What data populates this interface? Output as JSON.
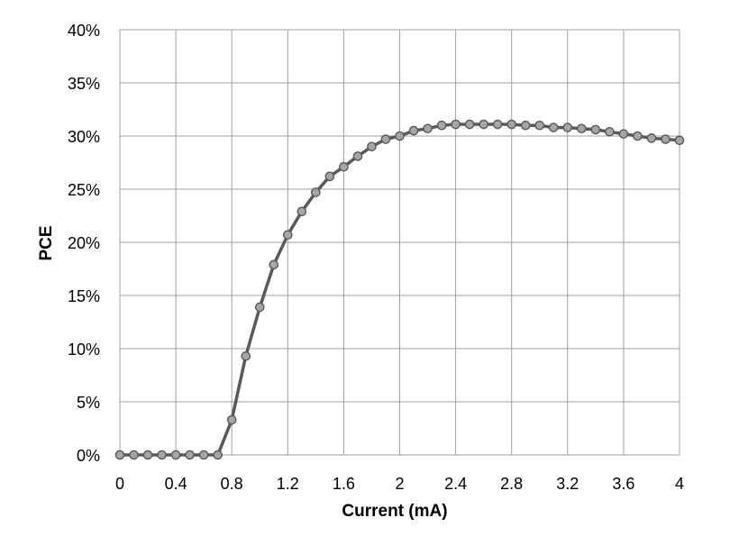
{
  "chart_data": {
    "type": "line",
    "title": "",
    "xlabel": "Current (mA)",
    "ylabel": "PCE",
    "xlim": [
      0,
      4
    ],
    "ylim": [
      0,
      40
    ],
    "x_ticks": [
      "0",
      "0.4",
      "0.8",
      "1.2",
      "1.6",
      "2",
      "2.4",
      "2.8",
      "3.2",
      "3.6",
      "4"
    ],
    "y_ticks": [
      "0%",
      "5%",
      "10%",
      "15%",
      "20%",
      "25%",
      "30%",
      "35%",
      "40%"
    ],
    "grid": true,
    "legend": "none",
    "colors": {
      "line": "#595959",
      "marker_fill": "#a6a6a6",
      "marker_edge": "#595959",
      "grid": "#a0a0a0"
    },
    "series": [
      {
        "x": [
          0,
          0.1,
          0.2,
          0.3,
          0.4,
          0.5,
          0.6,
          0.7,
          0.8,
          0.9,
          1.0,
          1.1,
          1.2,
          1.3,
          1.4,
          1.5,
          1.6,
          1.7,
          1.8,
          1.9,
          2.0,
          2.1,
          2.2,
          2.3,
          2.4,
          2.5,
          2.6,
          2.7,
          2.8,
          2.9,
          3.0,
          3.1,
          3.2,
          3.3,
          3.4,
          3.5,
          3.6,
          3.7,
          3.8,
          3.9,
          4.0
        ],
        "y": [
          0,
          0,
          0,
          0,
          0,
          0,
          0,
          0,
          3.3,
          9.3,
          13.9,
          17.9,
          20.7,
          22.9,
          24.7,
          26.2,
          27.1,
          28.1,
          29.0,
          29.7,
          30.0,
          30.5,
          30.7,
          31.0,
          31.1,
          31.1,
          31.1,
          31.1,
          31.1,
          31.0,
          31.0,
          30.8,
          30.8,
          30.7,
          30.6,
          30.4,
          30.2,
          30.0,
          29.8,
          29.7,
          29.6
        ]
      }
    ]
  }
}
